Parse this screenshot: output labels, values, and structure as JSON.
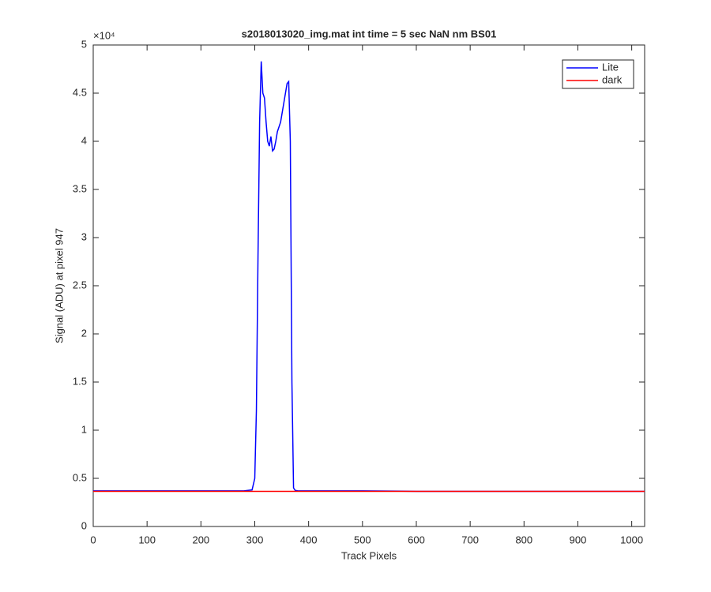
{
  "chart_data": {
    "type": "line",
    "title": "s2018013020_img.mat int time = 5 sec  NaN nm BS01",
    "x_label": "Track Pixels",
    "y_label": "Signal (ADU) at pixel 947",
    "y_multiplier": "×10⁴",
    "x": [
      0,
      100,
      200,
      280,
      295,
      300,
      303,
      306,
      309,
      312,
      315,
      318,
      321,
      324,
      327,
      330,
      333,
      336,
      339,
      342,
      345,
      348,
      351,
      354,
      357,
      360,
      363,
      366,
      369,
      372,
      375,
      380,
      400,
      500,
      600,
      700,
      800,
      900,
      1000,
      1024
    ],
    "series": [
      {
        "name": "Lite",
        "color": "#0000ff",
        "values": [
          0.37,
          0.37,
          0.37,
          0.37,
          0.38,
          0.5,
          1.2,
          2.8,
          4.2,
          4.83,
          4.5,
          4.45,
          4.2,
          4.0,
          3.95,
          4.05,
          3.9,
          3.92,
          4.0,
          4.1,
          4.15,
          4.2,
          4.3,
          4.4,
          4.5,
          4.6,
          4.62,
          4.0,
          1.5,
          0.4,
          0.375,
          0.37,
          0.37,
          0.37,
          0.365,
          0.365,
          0.365,
          0.365,
          0.365,
          0.365
        ]
      },
      {
        "name": "dark",
        "color": "#ff0000",
        "values": [
          0.365,
          0.365,
          0.365,
          0.365,
          0.365,
          0.365,
          0.365,
          0.365,
          0.365,
          0.365,
          0.365,
          0.365,
          0.365,
          0.365,
          0.365,
          0.365,
          0.365,
          0.365,
          0.365,
          0.365,
          0.365,
          0.365,
          0.365,
          0.365,
          0.365,
          0.365,
          0.365,
          0.365,
          0.365,
          0.365,
          0.365,
          0.365,
          0.365,
          0.365,
          0.365,
          0.365,
          0.365,
          0.365,
          0.365,
          0.365
        ]
      }
    ],
    "xlim": [
      0,
      1024
    ],
    "xticks": [
      0,
      100,
      200,
      300,
      400,
      500,
      600,
      700,
      800,
      900,
      1000
    ],
    "ylim": [
      0,
      5
    ],
    "yticks": [
      0,
      0.5,
      1,
      1.5,
      2,
      2.5,
      3,
      3.5,
      4,
      4.5,
      5
    ],
    "grid": false,
    "legend_position": "northeast"
  }
}
